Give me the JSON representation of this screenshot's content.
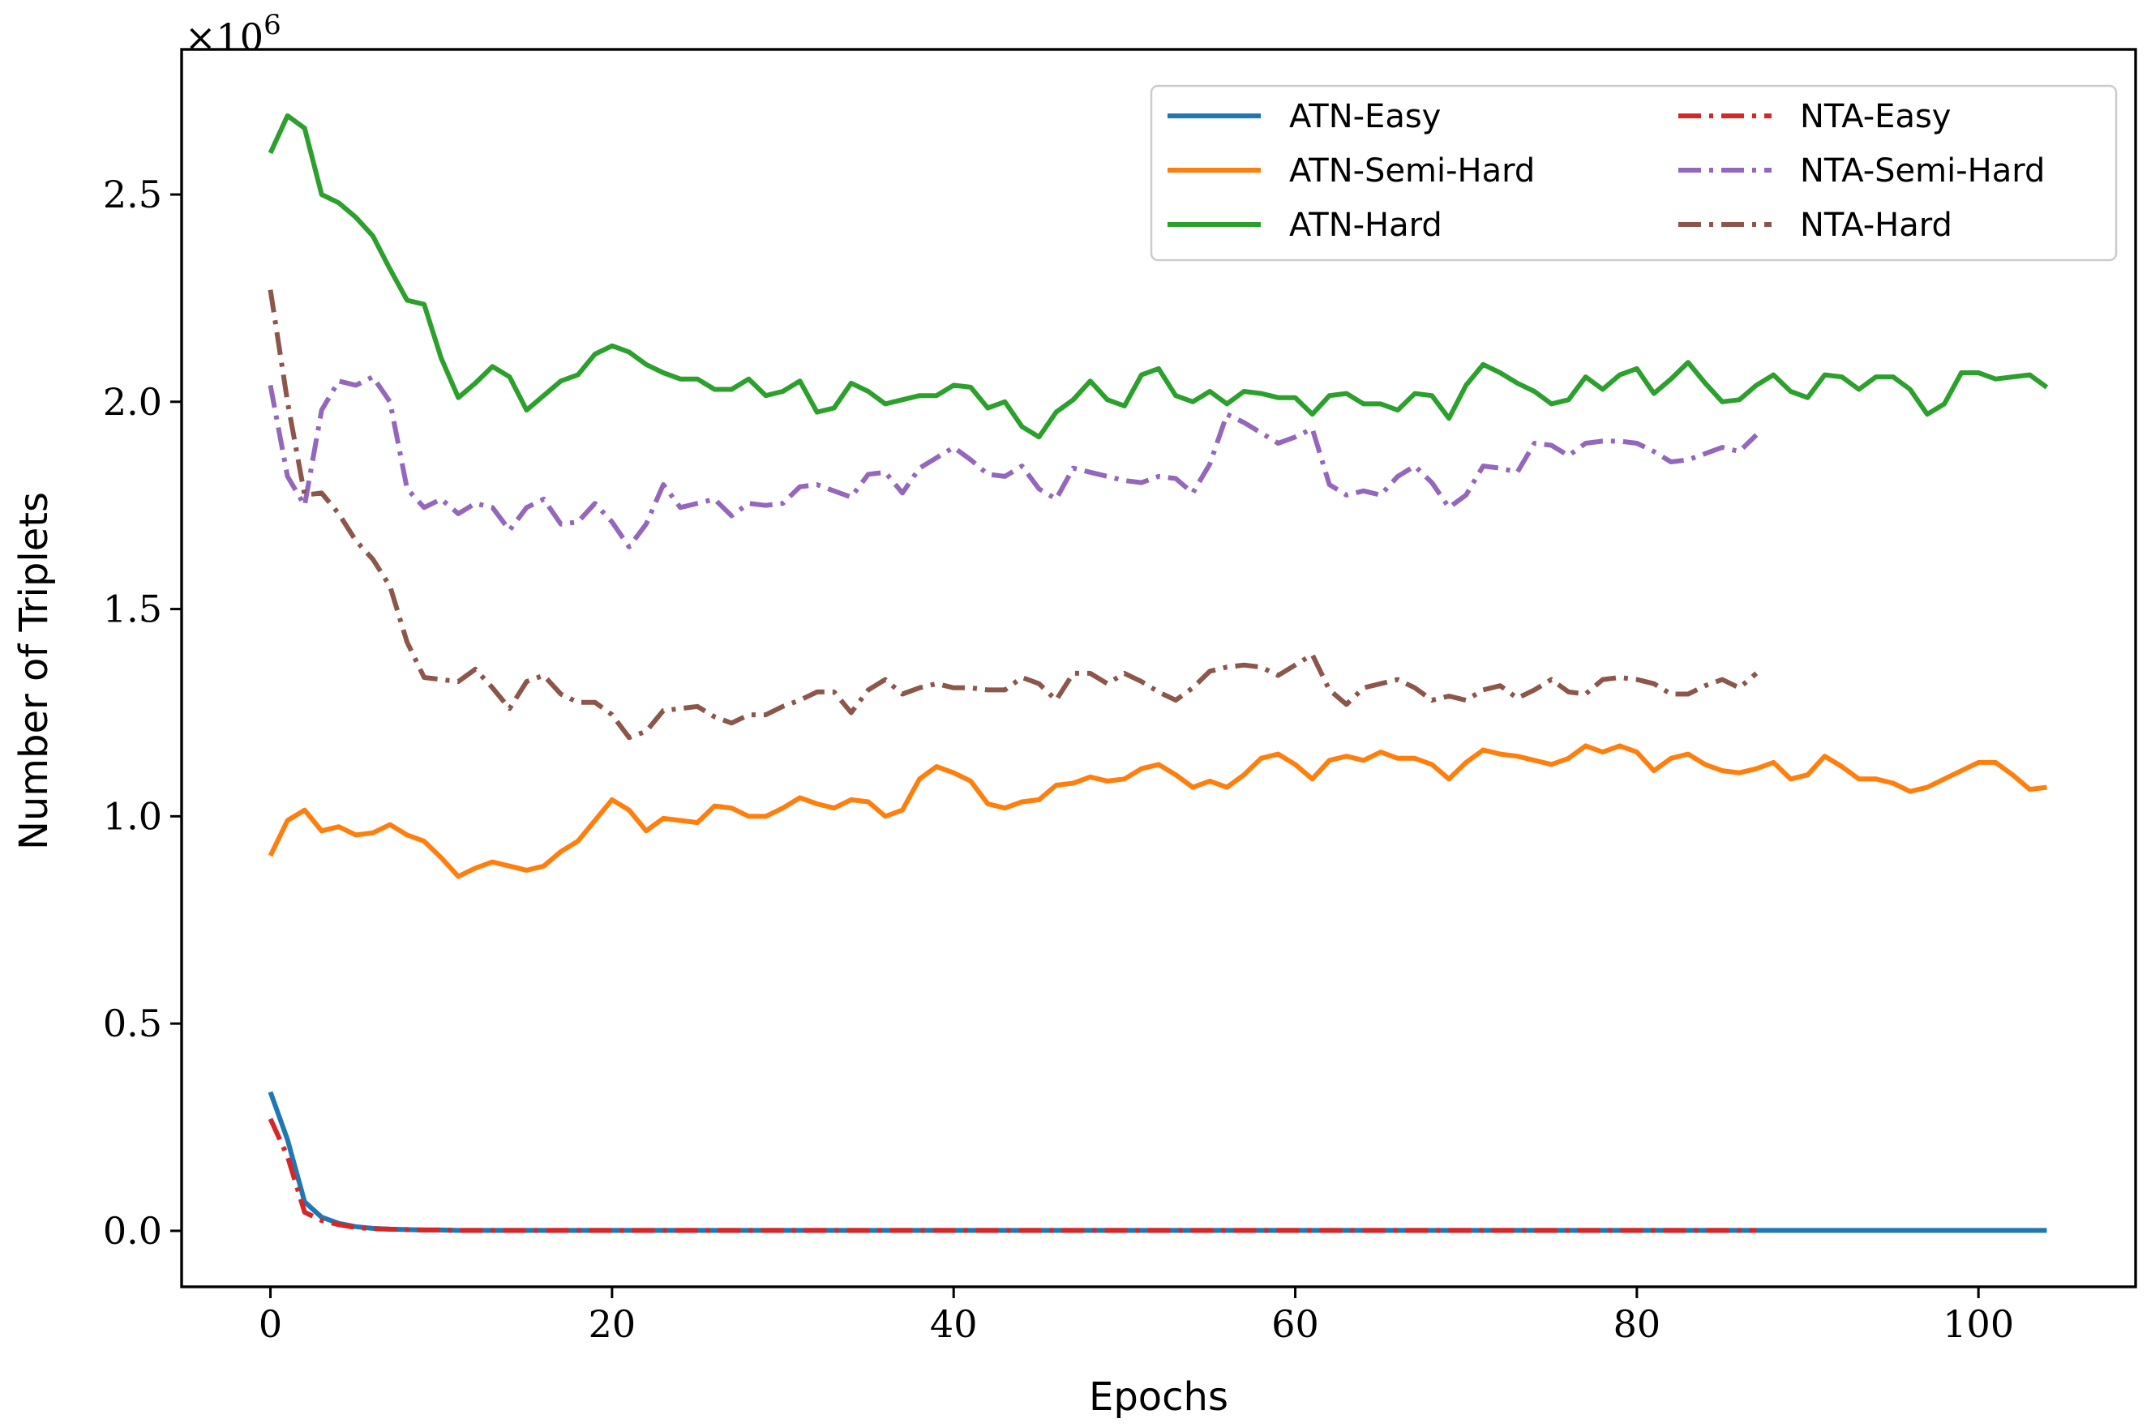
{
  "chart_data": {
    "type": "line",
    "xlabel": "Epochs",
    "ylabel": "Number of Triplets",
    "y_scale_label": {
      "base": "×10",
      "exponent": "6"
    },
    "y_multiplier": 1000000,
    "xlim": [
      -5.2,
      109.2
    ],
    "ylim": [
      -0.135,
      2.85
    ],
    "xticks": [
      0,
      20,
      40,
      60,
      80,
      100
    ],
    "yticks": [
      0.0,
      0.5,
      1.0,
      1.5,
      2.0,
      2.5
    ],
    "xtick_labels": [
      "0",
      "20",
      "40",
      "60",
      "80",
      "100"
    ],
    "ytick_labels": [
      "0.0",
      "0.5",
      "1.0",
      "1.5",
      "2.0",
      "2.5"
    ],
    "grid": false,
    "legend_position": "top-right",
    "series": [
      {
        "name": "ATN-Easy",
        "color": "#1f77b4",
        "style": "solid",
        "values": [
          0.335,
          0.22,
          0.07,
          0.033,
          0.018,
          0.01,
          0.006,
          0.004,
          0.003,
          0.002,
          0.002,
          0.001,
          0.001,
          0.001,
          0.001,
          0.001,
          0.001,
          0.001,
          0.001,
          0.001,
          0.001,
          0.001,
          0.001,
          0.001,
          0.001,
          0.001,
          0.001,
          0.001,
          0.001,
          0.001,
          0.001,
          0.001,
          0.001,
          0.001,
          0.001,
          0.001,
          0.001,
          0.001,
          0.001,
          0.001,
          0.001,
          0.001,
          0.001,
          0.001,
          0.001,
          0.001,
          0.001,
          0.001,
          0.001,
          0.001,
          0.001,
          0.001,
          0.001,
          0.001,
          0.001,
          0.001,
          0.001,
          0.001,
          0.001,
          0.001,
          0.001,
          0.001,
          0.001,
          0.001,
          0.001,
          0.001,
          0.001,
          0.001,
          0.001,
          0.001,
          0.001,
          0.001,
          0.001,
          0.001,
          0.001,
          0.001,
          0.001,
          0.001,
          0.001,
          0.001,
          0.001,
          0.001,
          0.001,
          0.001,
          0.001,
          0.001,
          0.001,
          0.001,
          0.001,
          0.001,
          0.001,
          0.001,
          0.001,
          0.001,
          0.001,
          0.001,
          0.001,
          0.001,
          0.001,
          0.001,
          0.001,
          0.001,
          0.001,
          0.001,
          0.001
        ]
      },
      {
        "name": "ATN-Semi-Hard",
        "color": "#ff7f0e",
        "style": "solid",
        "values": [
          0.905,
          0.99,
          1.015,
          0.965,
          0.975,
          0.955,
          0.96,
          0.98,
          0.955,
          0.94,
          0.9,
          0.855,
          0.875,
          0.89,
          0.88,
          0.87,
          0.88,
          0.915,
          0.94,
          0.99,
          1.04,
          1.015,
          0.965,
          0.995,
          0.99,
          0.985,
          1.025,
          1.02,
          1.0,
          1.0,
          1.02,
          1.045,
          1.03,
          1.02,
          1.04,
          1.035,
          1.0,
          1.015,
          1.09,
          1.12,
          1.105,
          1.085,
          1.03,
          1.02,
          1.035,
          1.04,
          1.075,
          1.08,
          1.095,
          1.085,
          1.09,
          1.115,
          1.125,
          1.1,
          1.07,
          1.085,
          1.07,
          1.1,
          1.14,
          1.15,
          1.125,
          1.09,
          1.135,
          1.145,
          1.135,
          1.155,
          1.14,
          1.14,
          1.125,
          1.09,
          1.13,
          1.16,
          1.15,
          1.145,
          1.135,
          1.125,
          1.14,
          1.17,
          1.155,
          1.17,
          1.155,
          1.11,
          1.14,
          1.15,
          1.125,
          1.11,
          1.105,
          1.115,
          1.13,
          1.09,
          1.1,
          1.145,
          1.12,
          1.09,
          1.09,
          1.08,
          1.06,
          1.07,
          1.09,
          1.11,
          1.13,
          1.13,
          1.1,
          1.065,
          1.07
        ]
      },
      {
        "name": "ATN-Hard",
        "color": "#2ca02c",
        "style": "solid",
        "values": [
          2.6,
          2.69,
          2.66,
          2.5,
          2.48,
          2.445,
          2.4,
          2.32,
          2.245,
          2.235,
          2.105,
          2.01,
          2.045,
          2.085,
          2.06,
          1.98,
          2.015,
          2.05,
          2.065,
          2.115,
          2.135,
          2.12,
          2.09,
          2.07,
          2.055,
          2.055,
          2.03,
          2.03,
          2.055,
          2.015,
          2.025,
          2.05,
          1.975,
          1.985,
          2.045,
          2.025,
          1.995,
          2.005,
          2.015,
          2.015,
          2.04,
          2.035,
          1.985,
          2.0,
          1.94,
          1.915,
          1.975,
          2.005,
          2.05,
          2.005,
          1.99,
          2.065,
          2.08,
          2.015,
          2.0,
          2.025,
          1.995,
          2.025,
          2.02,
          2.01,
          2.01,
          1.97,
          2.015,
          2.02,
          1.995,
          1.995,
          1.98,
          2.02,
          2.015,
          1.96,
          2.04,
          2.09,
          2.07,
          2.045,
          2.025,
          1.995,
          2.005,
          2.06,
          2.03,
          2.065,
          2.08,
          2.02,
          2.055,
          2.095,
          2.045,
          2.0,
          2.005,
          2.04,
          2.065,
          2.025,
          2.01,
          2.065,
          2.06,
          2.03,
          2.06,
          2.06,
          2.03,
          1.97,
          1.995,
          2.07,
          2.07,
          2.055,
          2.06,
          2.065,
          2.035
        ]
      },
      {
        "name": "NTA-Easy",
        "color": "#d62728",
        "style": "dashdot",
        "values": [
          0.27,
          0.18,
          0.045,
          0.025,
          0.015,
          0.008,
          0.005,
          0.004,
          0.003,
          0.002,
          0.002,
          0.001,
          0.001,
          0.001,
          0.001,
          0.001,
          0.001,
          0.001,
          0.001,
          0.001,
          0.001,
          0.001,
          0.001,
          0.001,
          0.001,
          0.001,
          0.001,
          0.001,
          0.001,
          0.001,
          0.001,
          0.001,
          0.001,
          0.001,
          0.001,
          0.001,
          0.001,
          0.001,
          0.001,
          0.001,
          0.001,
          0.001,
          0.001,
          0.001,
          0.001,
          0.001,
          0.001,
          0.001,
          0.001,
          0.001,
          0.001,
          0.001,
          0.001,
          0.001,
          0.001,
          0.001,
          0.001,
          0.001,
          0.001,
          0.001,
          0.001,
          0.001,
          0.001,
          0.001,
          0.001,
          0.001,
          0.001,
          0.001,
          0.001,
          0.001,
          0.001,
          0.001,
          0.001,
          0.001,
          0.001,
          0.001,
          0.001,
          0.001,
          0.001,
          0.001,
          0.001,
          0.001,
          0.001,
          0.001,
          0.001,
          0.001,
          0.001,
          0.001
        ]
      },
      {
        "name": "NTA-Semi-Hard",
        "color": "#9467bd",
        "style": "dashdot",
        "values": [
          2.04,
          1.82,
          1.75,
          1.98,
          2.05,
          2.04,
          2.06,
          2.0,
          1.79,
          1.745,
          1.765,
          1.73,
          1.755,
          1.745,
          1.69,
          1.745,
          1.765,
          1.705,
          1.71,
          1.755,
          1.71,
          1.65,
          1.705,
          1.8,
          1.745,
          1.755,
          1.765,
          1.725,
          1.755,
          1.75,
          1.755,
          1.795,
          1.8,
          1.785,
          1.77,
          1.825,
          1.83,
          1.78,
          1.84,
          1.865,
          1.89,
          1.86,
          1.825,
          1.82,
          1.845,
          1.79,
          1.765,
          1.84,
          1.83,
          1.82,
          1.81,
          1.805,
          1.82,
          1.815,
          1.78,
          1.85,
          1.97,
          1.95,
          1.925,
          1.9,
          1.915,
          1.935,
          1.8,
          1.775,
          1.785,
          1.775,
          1.82,
          1.845,
          1.805,
          1.745,
          1.775,
          1.845,
          1.84,
          1.83,
          1.9,
          1.895,
          1.87,
          1.9,
          1.905,
          1.905,
          1.9,
          1.88,
          1.855,
          1.86,
          1.875,
          1.89,
          1.88,
          1.92
        ]
      },
      {
        "name": "NTA-Hard",
        "color": "#8c564b",
        "style": "dashdot",
        "values": [
          2.27,
          2.0,
          1.775,
          1.78,
          1.73,
          1.665,
          1.62,
          1.555,
          1.42,
          1.335,
          1.33,
          1.325,
          1.355,
          1.31,
          1.26,
          1.325,
          1.34,
          1.295,
          1.275,
          1.275,
          1.245,
          1.19,
          1.205,
          1.255,
          1.26,
          1.265,
          1.24,
          1.225,
          1.245,
          1.245,
          1.265,
          1.28,
          1.3,
          1.3,
          1.25,
          1.305,
          1.33,
          1.295,
          1.31,
          1.32,
          1.31,
          1.31,
          1.305,
          1.305,
          1.335,
          1.32,
          1.28,
          1.345,
          1.345,
          1.32,
          1.345,
          1.325,
          1.3,
          1.28,
          1.31,
          1.35,
          1.36,
          1.365,
          1.36,
          1.34,
          1.365,
          1.39,
          1.305,
          1.27,
          1.31,
          1.32,
          1.33,
          1.31,
          1.28,
          1.29,
          1.28,
          1.305,
          1.315,
          1.285,
          1.305,
          1.33,
          1.3,
          1.295,
          1.33,
          1.335,
          1.33,
          1.32,
          1.295,
          1.295,
          1.315,
          1.33,
          1.31,
          1.345
        ]
      }
    ]
  }
}
